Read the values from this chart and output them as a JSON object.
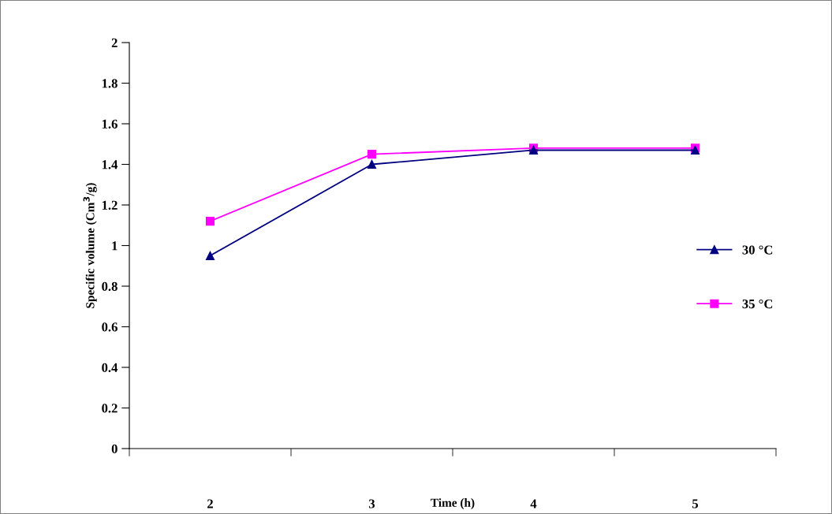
{
  "chart_data": {
    "type": "line",
    "xlabel": "Time (h)",
    "ylabel": "Specific volume (Cm$^{3}$/g)",
    "categories": [
      "2",
      "3",
      "4",
      "5"
    ],
    "series": [
      {
        "name": "30 °C",
        "color": "#000080",
        "marker": "triangle",
        "values": [
          0.95,
          1.4,
          1.47,
          1.47
        ]
      },
      {
        "name": "35 °C",
        "color": "#ff00ff",
        "marker": "square",
        "values": [
          1.12,
          1.45,
          1.48,
          1.48
        ]
      }
    ],
    "ylim": [
      0,
      2
    ],
    "yticks": [
      0,
      0.2,
      0.4,
      0.6,
      0.8,
      1,
      1.2,
      1.4,
      1.6,
      1.8,
      2
    ],
    "grid": false,
    "legend": "right",
    "line_style": "solid"
  }
}
